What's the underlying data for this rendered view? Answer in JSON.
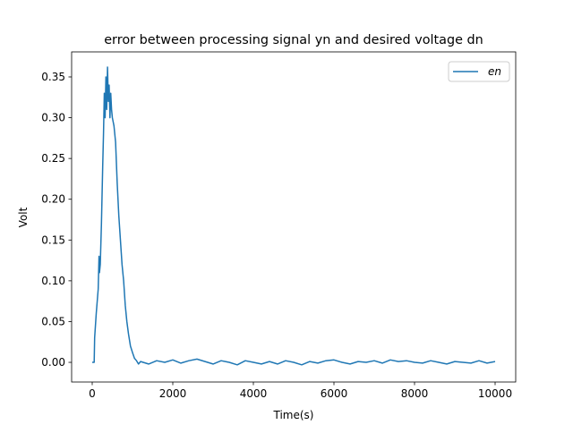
{
  "chart_data": {
    "type": "line",
    "title": "error between processing signal yn and desired voltage dn",
    "xlabel": "Time(s)",
    "ylabel": "Volt",
    "xlim": [
      -511,
      10511
    ],
    "ylim": [
      -0.0241,
      0.3807
    ],
    "xticks": [
      0,
      2000,
      4000,
      6000,
      8000,
      10000
    ],
    "yticks": [
      0.0,
      0.05,
      0.1,
      0.15,
      0.2,
      0.25,
      0.3,
      0.35
    ],
    "ytick_labels": [
      "0.00",
      "0.05",
      "0.10",
      "0.15",
      "0.20",
      "0.25",
      "0.30",
      "0.35"
    ],
    "grid": false,
    "legend": "top-right",
    "series": [
      {
        "name": "en",
        "color": "#1f77b4",
        "x": [
          0,
          50,
          60,
          100,
          150,
          170,
          180,
          200,
          230,
          260,
          280,
          300,
          320,
          340,
          360,
          380,
          400,
          420,
          440,
          460,
          480,
          500,
          540,
          580,
          620,
          660,
          700,
          740,
          780,
          820,
          860,
          900,
          950,
          1000,
          1050,
          1100,
          1150,
          1200,
          1400,
          1600,
          1800,
          2000,
          2200,
          2400,
          2600,
          2800,
          3000,
          3200,
          3400,
          3600,
          3800,
          4000,
          4200,
          4400,
          4600,
          4800,
          5000,
          5200,
          5400,
          5600,
          5800,
          6000,
          6200,
          6400,
          6600,
          6800,
          7000,
          7200,
          7400,
          7600,
          7800,
          8000,
          8200,
          8400,
          8600,
          8800,
          9000,
          9200,
          9400,
          9600,
          9800,
          10000
        ],
        "y": [
          0,
          0,
          0.03,
          0.06,
          0.09,
          0.13,
          0.11,
          0.12,
          0.17,
          0.24,
          0.28,
          0.33,
          0.3,
          0.35,
          0.31,
          0.362,
          0.32,
          0.34,
          0.3,
          0.33,
          0.31,
          0.3,
          0.29,
          0.27,
          0.22,
          0.18,
          0.15,
          0.12,
          0.1,
          0.07,
          0.05,
          0.035,
          0.02,
          0.012,
          0.005,
          0.002,
          -0.002,
          0.001,
          -0.002,
          0.002,
          0.0,
          0.003,
          -0.001,
          0.002,
          0.004,
          0.001,
          -0.002,
          0.002,
          0.0,
          -0.003,
          0.002,
          0.0,
          -0.002,
          0.001,
          -0.002,
          0.002,
          0.0,
          -0.003,
          0.001,
          -0.001,
          0.002,
          0.003,
          0.0,
          -0.002,
          0.001,
          0.0,
          0.002,
          -0.001,
          0.003,
          0.001,
          0.002,
          0.0,
          -0.001,
          0.002,
          0.0,
          -0.002,
          0.001,
          0.0,
          -0.001,
          0.002,
          -0.001,
          0.001
        ]
      }
    ]
  }
}
